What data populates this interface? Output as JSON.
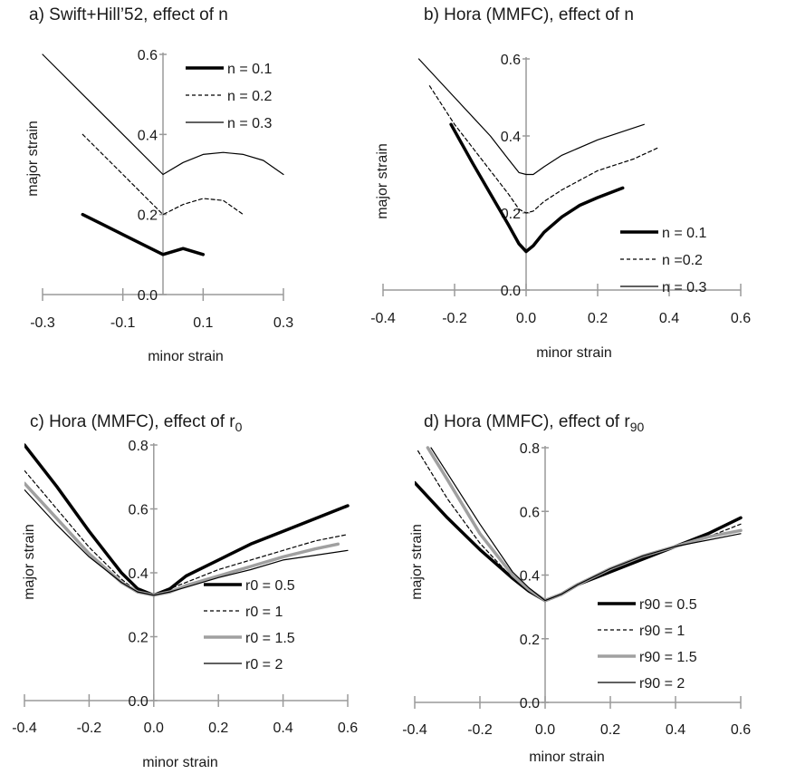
{
  "chart_data": [
    {
      "type": "line",
      "title": "a) Swift+Hill’52, effect of n",
      "xlabel": "minor strain",
      "ylabel": "major strain",
      "xlim": [
        -0.3,
        0.3
      ],
      "ylim": [
        0,
        0.6
      ],
      "xticks": [
        "-0.3",
        "-0.1",
        "0.1",
        "0.3"
      ],
      "yticks": [
        "0.0",
        "0.2",
        "0.4",
        "0.6"
      ],
      "legend_position": "top-right",
      "series": [
        {
          "name": "n = 0.1",
          "style": "thick",
          "x": [
            -0.2,
            -0.15,
            -0.1,
            -0.05,
            0,
            0.05,
            0.1
          ],
          "y": [
            0.2,
            0.175,
            0.15,
            0.125,
            0.1,
            0.115,
            0.1
          ]
        },
        {
          "name": "n = 0.2",
          "style": "dashed",
          "x": [
            -0.2,
            -0.15,
            -0.1,
            -0.05,
            0,
            0.05,
            0.1,
            0.15,
            0.2
          ],
          "y": [
            0.4,
            0.35,
            0.3,
            0.25,
            0.2,
            0.225,
            0.24,
            0.235,
            0.2
          ]
        },
        {
          "name": "n = 0.3",
          "style": "thin",
          "x": [
            -0.3,
            -0.2,
            -0.1,
            0,
            0.05,
            0.1,
            0.15,
            0.2,
            0.25,
            0.3
          ],
          "y": [
            0.6,
            0.5,
            0.4,
            0.3,
            0.33,
            0.35,
            0.355,
            0.35,
            0.335,
            0.3
          ]
        }
      ]
    },
    {
      "type": "line",
      "title": "b) Hora (MMFC), effect of n",
      "xlabel": "minor strain",
      "ylabel": "major strain",
      "xlim": [
        -0.4,
        0.6
      ],
      "ylim": [
        0,
        0.6
      ],
      "xticks": [
        "-0.4",
        "-0.2",
        "0.0",
        "0.2",
        "0.4",
        "0.6"
      ],
      "yticks": [
        "0.0",
        "0.2",
        "0.4",
        "0.6"
      ],
      "legend_position": "bottom-right",
      "series": [
        {
          "name": "n = 0.1",
          "style": "thick",
          "x": [
            -0.21,
            -0.15,
            -0.1,
            -0.05,
            -0.02,
            0,
            0.02,
            0.05,
            0.1,
            0.15,
            0.2,
            0.27
          ],
          "y": [
            0.43,
            0.33,
            0.25,
            0.17,
            0.12,
            0.1,
            0.115,
            0.15,
            0.19,
            0.22,
            0.24,
            0.265
          ]
        },
        {
          "name": "n =0.2",
          "style": "dashed",
          "x": [
            -0.27,
            -0.2,
            -0.15,
            -0.1,
            -0.05,
            -0.02,
            0,
            0.02,
            0.05,
            0.1,
            0.2,
            0.3,
            0.37
          ],
          "y": [
            0.53,
            0.43,
            0.37,
            0.31,
            0.25,
            0.21,
            0.2,
            0.205,
            0.23,
            0.26,
            0.31,
            0.34,
            0.37
          ]
        },
        {
          "name": "n = 0.3",
          "style": "thin",
          "x": [
            -0.3,
            -0.2,
            -0.15,
            -0.1,
            -0.05,
            -0.02,
            0,
            0.02,
            0.05,
            0.1,
            0.2,
            0.33
          ],
          "y": [
            0.6,
            0.5,
            0.45,
            0.4,
            0.34,
            0.305,
            0.3,
            0.3,
            0.32,
            0.35,
            0.39,
            0.43
          ]
        }
      ]
    },
    {
      "type": "line",
      "title": "c) Hora (MMFC), effect of r",
      "title_subscript": "0",
      "xlabel": "minor strain",
      "ylabel": "major strain",
      "xlim": [
        -0.4,
        0.6
      ],
      "ylim": [
        0,
        0.8
      ],
      "xticks": [
        "-0.4",
        "-0.2",
        "0.0",
        "0.2",
        "0.4",
        "0.6"
      ],
      "yticks": [
        "0.0",
        "0.2",
        "0.4",
        "0.6",
        "0.8"
      ],
      "legend_position": "bottom-right",
      "series": [
        {
          "name": "r0 = 0.5",
          "style": "thick",
          "x": [
            -0.4,
            -0.3,
            -0.2,
            -0.1,
            -0.05,
            0,
            0.05,
            0.1,
            0.2,
            0.3,
            0.4,
            0.5,
            0.6
          ],
          "y": [
            0.8,
            0.67,
            0.53,
            0.4,
            0.35,
            0.33,
            0.35,
            0.39,
            0.44,
            0.49,
            0.53,
            0.57,
            0.61
          ]
        },
        {
          "name": "r0 = 1",
          "style": "dashed",
          "x": [
            -0.4,
            -0.3,
            -0.2,
            -0.1,
            -0.05,
            0,
            0.05,
            0.1,
            0.2,
            0.3,
            0.4,
            0.5,
            0.6
          ],
          "y": [
            0.72,
            0.6,
            0.48,
            0.38,
            0.34,
            0.33,
            0.35,
            0.37,
            0.41,
            0.44,
            0.47,
            0.5,
            0.52
          ]
        },
        {
          "name": "r0 = 1.5",
          "style": "gray",
          "x": [
            -0.4,
            -0.3,
            -0.2,
            -0.1,
            -0.05,
            0,
            0.05,
            0.1,
            0.2,
            0.3,
            0.4,
            0.5,
            0.57
          ],
          "y": [
            0.68,
            0.57,
            0.46,
            0.37,
            0.34,
            0.33,
            0.34,
            0.36,
            0.39,
            0.42,
            0.45,
            0.475,
            0.49
          ]
        },
        {
          "name": "r0 = 2",
          "style": "thin",
          "x": [
            -0.4,
            -0.3,
            -0.2,
            -0.1,
            -0.05,
            0,
            0.05,
            0.1,
            0.2,
            0.3,
            0.4,
            0.5,
            0.6
          ],
          "y": [
            0.66,
            0.55,
            0.45,
            0.37,
            0.34,
            0.33,
            0.34,
            0.355,
            0.385,
            0.41,
            0.44,
            0.455,
            0.47
          ]
        }
      ]
    },
    {
      "type": "line",
      "title": "d) Hora (MMFC), effect of r",
      "title_subscript": "90",
      "xlabel": "minor strain",
      "ylabel": "major strain",
      "xlim": [
        -0.4,
        0.6
      ],
      "ylim": [
        0,
        0.8
      ],
      "xticks": [
        "-0.4",
        "-0.2",
        "0.0",
        "0.2",
        "0.4",
        "0.6"
      ],
      "yticks": [
        "0.0",
        "0.2",
        "0.4",
        "0.6",
        "0.8"
      ],
      "legend_position": "bottom-right",
      "series": [
        {
          "name": "r90 = 0.5",
          "style": "thick",
          "x": [
            -0.4,
            -0.3,
            -0.2,
            -0.1,
            -0.05,
            0,
            0.05,
            0.1,
            0.2,
            0.3,
            0.4,
            0.5,
            0.6
          ],
          "y": [
            0.69,
            0.58,
            0.48,
            0.39,
            0.35,
            0.32,
            0.34,
            0.37,
            0.41,
            0.45,
            0.49,
            0.53,
            0.58
          ]
        },
        {
          "name": "r90 = 1",
          "style": "dashed",
          "x": [
            -0.39,
            -0.3,
            -0.2,
            -0.1,
            -0.05,
            0,
            0.05,
            0.1,
            0.2,
            0.3,
            0.4,
            0.5,
            0.6
          ],
          "y": [
            0.79,
            0.64,
            0.5,
            0.39,
            0.35,
            0.32,
            0.34,
            0.37,
            0.41,
            0.45,
            0.49,
            0.52,
            0.56
          ]
        },
        {
          "name": "r90 = 1.5",
          "style": "gray",
          "x": [
            -0.36,
            -0.3,
            -0.2,
            -0.1,
            -0.05,
            0,
            0.05,
            0.1,
            0.2,
            0.3,
            0.4,
            0.5,
            0.6
          ],
          "y": [
            0.8,
            0.7,
            0.53,
            0.4,
            0.355,
            0.32,
            0.34,
            0.37,
            0.42,
            0.46,
            0.49,
            0.52,
            0.54
          ]
        },
        {
          "name": "r90 = 2",
          "style": "thin",
          "x": [
            -0.35,
            -0.3,
            -0.2,
            -0.1,
            -0.05,
            0,
            0.05,
            0.1,
            0.2,
            0.3,
            0.4,
            0.5,
            0.6
          ],
          "y": [
            0.8,
            0.72,
            0.56,
            0.41,
            0.36,
            0.32,
            0.34,
            0.37,
            0.42,
            0.46,
            0.49,
            0.51,
            0.53
          ]
        }
      ]
    }
  ]
}
